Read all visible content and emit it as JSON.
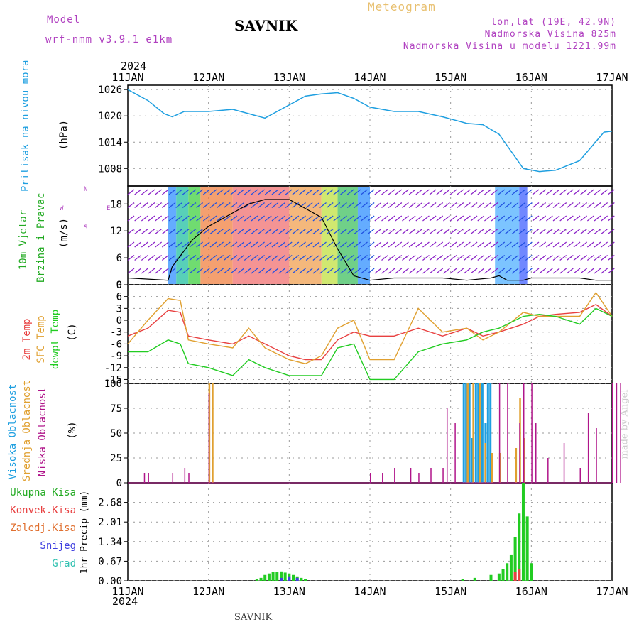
{
  "header": {
    "model_label": "Model",
    "model_name": "wrf-nmm_v3.9.1 e1km",
    "station": "SAVNIK",
    "product": "Meteogram",
    "lonlat": "lon,lat (19E, 42.9N)",
    "altitude": "Nadmorska Visina 825m",
    "model_altitude": "Nadmorska Visina u modelu 1221.99m",
    "year_top": "2024",
    "year_bottom": "2024",
    "footer_station": "SAVNIK",
    "watermark": "made by Angel"
  },
  "colors": {
    "pressure": "#1e9fe0",
    "temp2m": "#e84040",
    "sfc": "#e0a030",
    "dewpt": "#22cc22",
    "high_cloud": "#1e9fe0",
    "mid_cloud": "#e0a030",
    "low_cloud": "#b0158a",
    "total_precip": "#22cc22",
    "conv_precip": "#e84040",
    "snow": "#4040e0",
    "wind_label": "#22aa22",
    "dir_label": "#b040c0"
  },
  "x_ticks": [
    "11JAN",
    "12JAN",
    "13JAN",
    "14JAN",
    "15JAN",
    "16JAN",
    "17JAN"
  ],
  "chart_data": [
    {
      "type": "line",
      "panel": "pressure",
      "ylabel": [
        "Pritisak na nivou mora",
        "(hPa)"
      ],
      "yticks": [
        "1026",
        "1020",
        "1014",
        "1008"
      ],
      "ylim": [
        1004,
        1027
      ],
      "x_days": [
        0,
        0.25,
        0.45,
        0.55,
        0.7,
        1.0,
        1.3,
        1.5,
        1.7,
        2.0,
        2.2,
        2.4,
        2.6,
        2.8,
        3.0,
        3.3,
        3.6,
        3.9,
        4.2,
        4.4,
        4.6,
        4.9,
        5.1,
        5.3,
        5.6,
        5.9,
        6.0
      ],
      "values": [
        1026,
        1023.5,
        1020.5,
        1019.8,
        1021,
        1021,
        1021.5,
        1020.5,
        1019.5,
        1022.5,
        1024.5,
        1025,
        1025.3,
        1024,
        1022,
        1021,
        1021,
        1019.8,
        1018.3,
        1018,
        1015.8,
        1008,
        1007.3,
        1007.6,
        1009.8,
        1016.3,
        1016.5
      ]
    },
    {
      "type": "line",
      "panel": "wind",
      "ylabel": [
        "10m Vjetar",
        "Brzina i Pravac",
        "(m/s)"
      ],
      "compass": [
        "N",
        "E",
        "S",
        "W"
      ],
      "yticks": [
        "18",
        "12",
        "6",
        "0"
      ],
      "ylim": [
        0,
        22
      ],
      "x_days": [
        0,
        0.5,
        0.55,
        0.8,
        1.0,
        1.3,
        1.5,
        1.7,
        2.0,
        2.2,
        2.4,
        2.6,
        2.8,
        3.0,
        3.3,
        3.6,
        3.9,
        4.2,
        4.5,
        4.6,
        4.7,
        4.9,
        5.0,
        5.3,
        5.6,
        5.8,
        6.0
      ],
      "values": [
        1.5,
        1,
        4,
        10,
        13,
        16,
        18,
        19,
        19,
        17,
        15,
        8,
        2,
        1,
        1.5,
        1.5,
        1.5,
        1,
        1.5,
        2,
        1,
        1,
        1.5,
        1.5,
        1.5,
        1,
        1
      ]
    },
    {
      "type": "line",
      "panel": "temperature",
      "ylabel": [
        "2m Temp",
        "SFC Temp",
        "dewpt Temp",
        "(C)"
      ],
      "yticks": [
        "9",
        "6",
        "3",
        "0",
        "-3",
        "-6",
        "-9",
        "-12",
        "-15"
      ],
      "ylim": [
        -16,
        9
      ],
      "x_days": [
        0,
        0.25,
        0.5,
        0.65,
        0.75,
        1.0,
        1.3,
        1.5,
        1.7,
        2.0,
        2.2,
        2.4,
        2.6,
        2.8,
        3.0,
        3.3,
        3.6,
        3.9,
        4.2,
        4.4,
        4.6,
        4.9,
        5.1,
        5.3,
        5.6,
        5.8,
        6.0
      ],
      "series": [
        {
          "name": "2m Temp",
          "values": [
            -4,
            -2,
            2.5,
            2,
            -4,
            -5,
            -6,
            -4,
            -6,
            -9,
            -10,
            -10,
            -5,
            -3,
            -4,
            -4,
            -2,
            -4,
            -2,
            -4,
            -3,
            -1,
            1,
            1.5,
            2,
            4,
            1
          ]
        },
        {
          "name": "SFC Temp",
          "values": [
            -6,
            0,
            5.5,
            5,
            -5,
            -6,
            -7,
            -2,
            -7,
            -10,
            -11,
            -9,
            -2,
            0,
            -10,
            -10,
            3,
            -3,
            -2,
            -5,
            -3,
            2,
            1,
            1,
            1,
            7,
            1
          ]
        },
        {
          "name": "dewpt Temp",
          "values": [
            -8,
            -8,
            -5,
            -6,
            -11,
            -12,
            -14,
            -10,
            -12,
            -14,
            -14,
            -14,
            -7,
            -6,
            -15,
            -15,
            -8,
            -6,
            -5,
            -3,
            -2,
            1,
            1.5,
            1,
            -1,
            3,
            1
          ]
        }
      ]
    },
    {
      "type": "bar",
      "panel": "cloud",
      "ylabel": [
        "Visoka Oblacnost",
        "Srednja Oblacnost",
        "Niska Oblacnost",
        "(%)"
      ],
      "yticks": [
        "100",
        "75",
        "50",
        "25",
        "0"
      ],
      "ylim": [
        0,
        100
      ],
      "series": [
        {
          "name": "Visoka Oblacnost",
          "x_days": [
            4.15,
            4.18,
            4.22,
            4.25,
            4.3,
            4.33,
            4.38,
            4.42,
            4.45,
            4.48
          ],
          "values": [
            100,
            100,
            100,
            45,
            100,
            100,
            100,
            60,
            100,
            100
          ]
        },
        {
          "name": "Srednja Oblacnost",
          "x_days": [
            1.0,
            1.04,
            4.2,
            4.27,
            4.35,
            4.42,
            4.5,
            4.6,
            4.8,
            4.85,
            4.9
          ],
          "values": [
            100,
            100,
            100,
            100,
            100,
            40,
            30,
            30,
            35,
            85,
            45
          ]
        },
        {
          "name": "Niska Oblacnost",
          "x_days": [
            0.2,
            0.25,
            0.55,
            0.7,
            0.75,
            1.0,
            3.0,
            3.15,
            3.3,
            3.5,
            3.6,
            3.75,
            3.9,
            3.95,
            4.05,
            4.6,
            4.7,
            4.85,
            4.9,
            5.0,
            5.05,
            5.2,
            5.4,
            5.6,
            5.7,
            5.8,
            6.0,
            6.05,
            6.1
          ],
          "values": [
            10,
            10,
            10,
            15,
            10,
            90,
            10,
            10,
            15,
            15,
            10,
            15,
            15,
            75,
            60,
            100,
            100,
            60,
            100,
            100,
            60,
            25,
            40,
            15,
            70,
            55,
            100,
            100,
            100
          ]
        }
      ]
    },
    {
      "type": "bar",
      "panel": "precip",
      "ylabel": [
        "1hr Precip (mm)"
      ],
      "legend": [
        "Ukupna Kisa",
        "Konvek.Kisa",
        "Zaledj.Kisa",
        "Snijeg",
        "Grad"
      ],
      "yticks": [
        "2.68",
        "2.01",
        "1.34",
        "0.67",
        "0.00"
      ],
      "ylim": [
        0,
        3.35
      ],
      "series": [
        {
          "name": "Ukupna Kisa",
          "x_days": [
            1.6,
            1.65,
            1.7,
            1.75,
            1.8,
            1.85,
            1.9,
            1.95,
            2.0,
            2.05,
            2.1,
            2.15,
            2.2,
            4.15,
            4.3,
            4.5,
            4.6,
            4.65,
            4.7,
            4.75,
            4.8,
            4.85,
            4.9,
            4.95,
            5.0
          ],
          "values": [
            0.05,
            0.1,
            0.2,
            0.25,
            0.3,
            0.3,
            0.32,
            0.28,
            0.25,
            0.2,
            0.15,
            0.1,
            0.05,
            0.05,
            0.1,
            0.2,
            0.25,
            0.4,
            0.6,
            0.9,
            1.5,
            2.3,
            3.35,
            2.2,
            0.6
          ]
        },
        {
          "name": "Konvek.Kisa",
          "x_days": [
            4.8,
            4.85
          ],
          "values": [
            0.3,
            0.4
          ]
        },
        {
          "name": "Snijeg",
          "x_days": [
            1.9,
            2.0,
            2.1
          ],
          "values": [
            0.1,
            0.15,
            0.1
          ]
        }
      ]
    }
  ]
}
